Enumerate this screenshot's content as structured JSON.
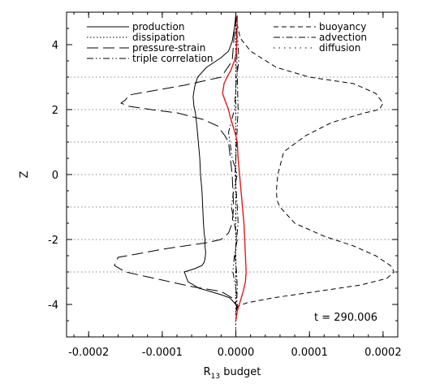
{
  "chart_data": {
    "type": "line",
    "title": "",
    "xlabel_main": "R",
    "xlabel_sub": "13",
    "xlabel_rest": " budget",
    "ylabel": "Z",
    "xlim": [
      -0.00023,
      0.00022
    ],
    "ylim": [
      -5,
      5
    ],
    "x_ticks": [
      -0.0002,
      -0.0001,
      0.0,
      0.0001,
      0.0002
    ],
    "x_tick_labels": [
      "-0.0002",
      "-0.0001",
      "0.0000",
      "0.0001",
      "0.0002"
    ],
    "y_ticks": [
      -4,
      -2,
      0,
      2,
      4
    ],
    "y_tick_labels": [
      "-4",
      "-2",
      "0",
      "2",
      "4"
    ],
    "grid": "horizontal dotted at z = -3, -2, -1, 0, 1, 2, 3",
    "grid_levels": [
      -3,
      -2,
      -1,
      0,
      1,
      2,
      3
    ],
    "annotation": "t = 290.006",
    "legend_position": "top",
    "series": [
      {
        "name": "production",
        "style": "solid",
        "color": "#000000",
        "x": [
          0,
          -2e-06,
          -5e-06,
          -1e-05,
          -2e-05,
          -4e-05,
          -5.2e-05,
          -5.6e-05,
          -5.8e-05,
          -5.7e-05,
          -5.5e-05,
          -5.3e-05,
          -5.1e-05,
          -4.9e-05,
          -4.8e-05,
          -4.6e-05,
          -4.5e-05,
          -4.4e-05,
          -4.3e-05,
          -4.2e-05,
          -4.2e-05,
          -4.1e-05,
          -4.2e-05,
          -4.3e-05,
          -4.6e-05,
          -5.6e-05,
          -7e-05,
          -6.5e-05,
          -5e-05,
          -3.5e-05,
          -2e-05,
          -8e-06,
          0
        ],
        "y": [
          4.9,
          4.5,
          4.1,
          3.8,
          3.6,
          3.3,
          3.0,
          2.7,
          2.4,
          2.1,
          1.9,
          1.5,
          1.0,
          0.5,
          0.0,
          -0.5,
          -1.0,
          -1.5,
          -1.8,
          -2.0,
          -2.2,
          -2.4,
          -2.6,
          -2.7,
          -2.8,
          -2.9,
          -3.0,
          -3.3,
          -3.5,
          -3.6,
          -3.7,
          -3.8,
          -4.0
        ]
      },
      {
        "name": "dissipation",
        "style": "dotted",
        "color": "#000000",
        "x": [
          0,
          0,
          0,
          0,
          0,
          0,
          0,
          0,
          0
        ],
        "y": [
          5,
          4,
          3,
          2,
          0,
          -2,
          -3,
          -4,
          -5
        ]
      },
      {
        "name": "pressure-strain",
        "style": "long-dash",
        "color": "#000000",
        "x": [
          0,
          -5e-06,
          -2e-05,
          -7e-05,
          -0.00012,
          -0.000145,
          -0.00015,
          -0.000156,
          -0.000145,
          -0.000115,
          -8e-05,
          -4.5e-05,
          -2.5e-05,
          -1.5e-05,
          -1e-05,
          -5e-06,
          -3e-06,
          -5e-06,
          -1e-05,
          -2e-05,
          -4e-05,
          -7e-05,
          -0.0001,
          -0.000135,
          -0.00016,
          -0.000165,
          -0.00015,
          -0.00011,
          -6e-05,
          -2e-05,
          -5e-06,
          0
        ],
        "y": [
          4.9,
          3.5,
          3.0,
          2.75,
          2.55,
          2.45,
          2.3,
          2.2,
          2.1,
          2.0,
          1.9,
          1.7,
          1.5,
          1.2,
          1.0,
          0.0,
          -1.0,
          -1.5,
          -1.8,
          -2.0,
          -2.1,
          -2.2,
          -2.3,
          -2.45,
          -2.55,
          -2.8,
          -3.0,
          -3.2,
          -3.45,
          -3.6,
          -3.8,
          -4.0
        ]
      },
      {
        "name": "triple correlation",
        "style": "dash-dot-dot",
        "color": "#000000",
        "x": [
          0,
          1e-06,
          3e-06,
          4e-06,
          1e-06,
          -2e-06,
          -1e-05,
          -8e-06,
          -5e-06,
          2e-06,
          -3e-06,
          -6e-06,
          -2e-06,
          2e-06,
          -2e-06,
          -4e-06,
          0,
          2e-06,
          0
        ],
        "y": [
          4.9,
          4.5,
          4.0,
          3.5,
          3.0,
          2.0,
          1.3,
          1.0,
          0.5,
          0.0,
          -0.5,
          -1.0,
          -1.5,
          -2.0,
          -2.5,
          -3.0,
          -3.5,
          -4.0,
          -4.5
        ]
      },
      {
        "name": "buoyancy",
        "style": "dashed",
        "color": "#000000",
        "x": [
          0,
          2e-06,
          6e-06,
          2e-05,
          5.5e-05,
          0.0001,
          0.00016,
          0.00019,
          0.0002,
          0.000195,
          0.000175,
          0.00013,
          9.5e-05,
          6.5e-05,
          5.7e-05,
          5.5e-05,
          5.6e-05,
          6e-05,
          8e-05,
          0.00012,
          0.00016,
          0.00019,
          0.00021,
          0.000215,
          0.000205,
          0.00017,
          0.00011,
          5e-05,
          1.5e-05,
          3e-06,
          0
        ],
        "y": [
          4.9,
          4.6,
          4.2,
          3.8,
          3.3,
          3.0,
          2.8,
          2.5,
          2.2,
          2.0,
          1.9,
          1.6,
          1.2,
          0.7,
          0.0,
          -0.5,
          -0.8,
          -1.0,
          -1.5,
          -1.9,
          -2.2,
          -2.5,
          -2.8,
          -3.0,
          -3.2,
          -3.4,
          -3.6,
          -3.8,
          -3.95,
          -4.05,
          -4.2
        ]
      },
      {
        "name": "advection",
        "style": "dash-dot",
        "color": "#000000",
        "x": [
          0,
          1e-06,
          2e-06,
          3e-06,
          1e-06,
          -1e-06,
          2e-06,
          3e-06,
          1e-06,
          -1e-06,
          1e-06,
          2e-06,
          0
        ],
        "y": [
          4.9,
          4.0,
          3.0,
          2.0,
          1.0,
          0.0,
          -1.0,
          -1.5,
          -2.0,
          -2.5,
          -3.0,
          -3.5,
          -4.5
        ]
      },
      {
        "name": "diffusion",
        "style": "sparse-dotted",
        "color": "#000000",
        "x": [
          0,
          0,
          0,
          0,
          0
        ],
        "y": [
          5,
          2.5,
          0,
          -2.5,
          -5
        ]
      },
      {
        "name": "",
        "style": "solid",
        "color": "#e31a1c",
        "x": [
          2e-06,
          1.5e-06,
          1e-06,
          -2e-06,
          -7e-06,
          -1.2e-05,
          -1.6e-05,
          -1.8e-05,
          -1.5e-05,
          -1e-05,
          -8e-06,
          -4e-06,
          0,
          2e-06,
          3e-06,
          5e-06,
          7e-06,
          9e-06,
          1.1e-05,
          1.2e-05,
          1.3e-05,
          1.4e-05,
          1.3e-05,
          1e-05,
          6e-06,
          2e-06,
          0
        ],
        "y": [
          4.9,
          4.3,
          3.8,
          3.5,
          3.2,
          3.0,
          2.8,
          2.5,
          2.3,
          2.0,
          1.8,
          1.5,
          1.2,
          1.0,
          0.5,
          0.0,
          -0.5,
          -1.0,
          -1.5,
          -2.0,
          -2.5,
          -3.0,
          -3.3,
          -3.6,
          -3.9,
          -4.2,
          -4.5
        ]
      }
    ]
  }
}
